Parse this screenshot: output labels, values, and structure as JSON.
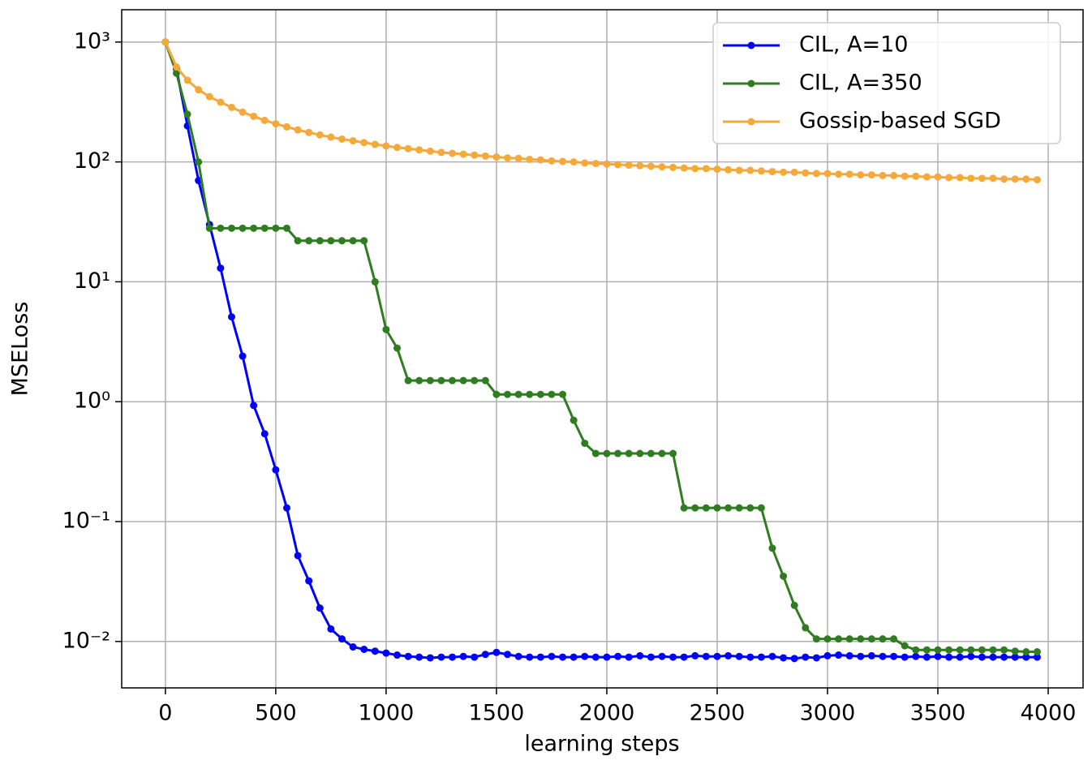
{
  "chart_data": {
    "type": "line",
    "xlabel": "learning steps",
    "ylabel": "MSELoss",
    "x": [
      0,
      50,
      100,
      150,
      200,
      250,
      300,
      350,
      400,
      450,
      500,
      550,
      600,
      650,
      700,
      750,
      800,
      850,
      900,
      950,
      1000,
      1050,
      1100,
      1150,
      1200,
      1250,
      1300,
      1350,
      1400,
      1450,
      1500,
      1550,
      1600,
      1650,
      1700,
      1750,
      1800,
      1850,
      1900,
      1950,
      2000,
      2050,
      2100,
      2150,
      2200,
      2250,
      2300,
      2350,
      2400,
      2450,
      2500,
      2550,
      2600,
      2650,
      2700,
      2750,
      2800,
      2850,
      2900,
      2950,
      3000,
      3050,
      3100,
      3150,
      3200,
      3250,
      3300,
      3350,
      3400,
      3450,
      3500,
      3550,
      3600,
      3650,
      3700,
      3750,
      3800,
      3850,
      3900,
      3950
    ],
    "series": [
      {
        "name": "CIL, A=10",
        "color": "#0000ff",
        "values": [
          1000,
          600,
          200,
          70,
          30,
          13,
          5.1,
          2.4,
          0.93,
          0.54,
          0.27,
          0.13,
          0.052,
          0.032,
          0.019,
          0.0127,
          0.0105,
          0.009,
          0.0086,
          0.0083,
          0.008,
          0.0077,
          0.0075,
          0.0074,
          0.0073,
          0.0074,
          0.0074,
          0.0075,
          0.0074,
          0.0078,
          0.0081,
          0.0078,
          0.0075,
          0.0074,
          0.0074,
          0.0075,
          0.0074,
          0.0074,
          0.0075,
          0.0074,
          0.0074,
          0.0075,
          0.0074,
          0.0076,
          0.0074,
          0.0075,
          0.0074,
          0.0074,
          0.0076,
          0.0075,
          0.0075,
          0.0076,
          0.0075,
          0.0074,
          0.0074,
          0.0075,
          0.0073,
          0.0072,
          0.0074,
          0.0073,
          0.0076,
          0.0077,
          0.0076,
          0.0075,
          0.0076,
          0.0075,
          0.0075,
          0.0074,
          0.0075,
          0.0074,
          0.0075,
          0.0074,
          0.0074,
          0.0075,
          0.0074,
          0.0074,
          0.0074,
          0.0074,
          0.0074,
          0.0074
        ]
      },
      {
        "name": "CIL, A=350",
        "color": "#2f7d20",
        "values": [
          1000,
          550,
          250,
          100,
          28,
          28,
          28,
          28,
          28,
          28,
          28,
          28,
          22,
          22,
          22,
          22,
          22,
          22,
          22,
          10,
          4,
          2.8,
          1.5,
          1.5,
          1.5,
          1.5,
          1.5,
          1.5,
          1.5,
          1.5,
          1.15,
          1.15,
          1.15,
          1.15,
          1.15,
          1.15,
          1.15,
          0.7,
          0.45,
          0.37,
          0.37,
          0.37,
          0.37,
          0.37,
          0.37,
          0.37,
          0.37,
          0.13,
          0.13,
          0.13,
          0.13,
          0.13,
          0.13,
          0.13,
          0.13,
          0.06,
          0.035,
          0.02,
          0.013,
          0.0105,
          0.0105,
          0.0105,
          0.0105,
          0.0105,
          0.0105,
          0.0105,
          0.0105,
          0.0092,
          0.0085,
          0.0085,
          0.0085,
          0.0085,
          0.0085,
          0.0085,
          0.0085,
          0.0085,
          0.0085,
          0.0083,
          0.0082,
          0.0082
        ]
      },
      {
        "name": "Gossip-based SGD",
        "color": "#f4a93a",
        "values": [
          1000,
          620,
          480,
          400,
          350,
          315,
          285,
          260,
          240,
          222,
          208,
          196,
          185,
          176,
          168,
          161,
          155,
          150,
          145,
          140,
          136,
          132,
          129,
          126,
          123,
          120,
          118,
          116,
          114,
          112,
          110,
          108,
          107,
          105,
          104,
          102,
          101,
          100,
          98,
          97,
          96,
          95,
          94,
          93,
          92,
          91,
          90,
          89,
          88,
          88,
          87,
          86,
          85,
          85,
          84,
          83,
          82,
          82,
          81,
          80,
          80,
          79,
          79,
          78,
          78,
          77,
          77,
          76,
          76,
          75,
          75,
          74,
          74,
          73,
          73,
          73,
          72,
          72,
          72,
          71
        ]
      }
    ],
    "xlim": [
      -198,
      4158
    ],
    "xticks": [
      0,
      500,
      1000,
      1500,
      2000,
      2500,
      3000,
      3500,
      4000
    ],
    "ylim": [
      0.0041,
      1860
    ],
    "log_y": true,
    "yticks": [
      {
        "value": 0.01,
        "label": "10⁻²"
      },
      {
        "value": 0.1,
        "label": "10⁻¹"
      },
      {
        "value": 1,
        "label": "10⁰"
      },
      {
        "value": 10,
        "label": "10¹"
      },
      {
        "value": 100,
        "label": "10²"
      },
      {
        "value": 1000,
        "label": "10³"
      }
    ],
    "grid": true,
    "legend": "upper right"
  }
}
